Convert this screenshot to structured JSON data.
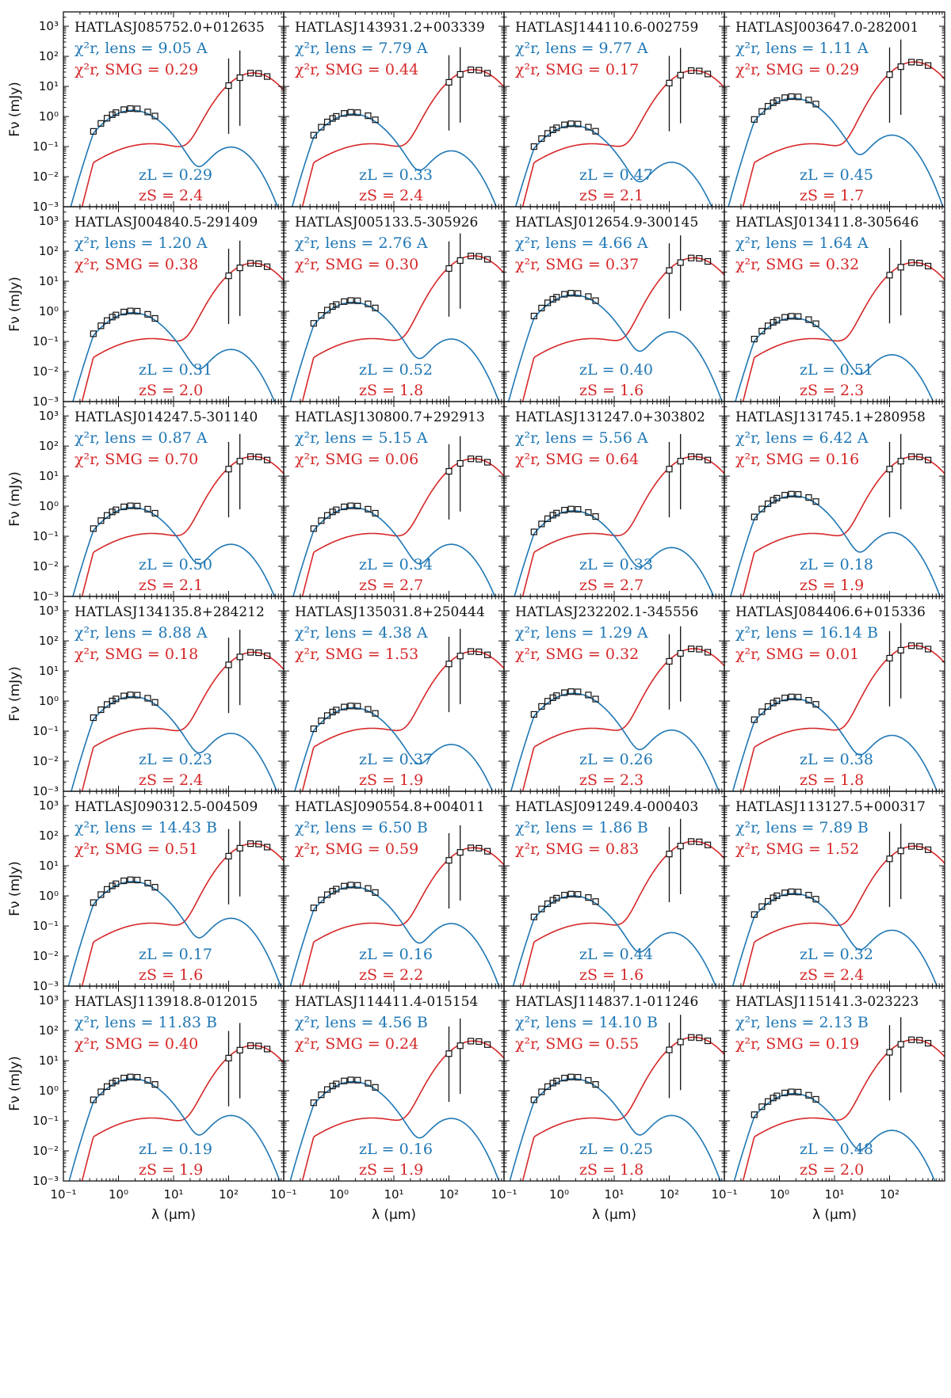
{
  "figure": {
    "xlabel": "λ (μm)",
    "ylabel": "Fν (mJy)",
    "colors": {
      "lens": "#1f77b4",
      "smg": "#d62728",
      "data": "#111111"
    }
  },
  "chart_data": {
    "type": "line",
    "x_scale": "log",
    "y_scale": "log",
    "xlim": [
      0.1,
      1000
    ],
    "ylim": [
      0.001,
      3000
    ],
    "x_ticks": [
      "10⁻¹",
      "10⁰",
      "10¹",
      "10²"
    ],
    "y_ticks": [
      "10⁻³",
      "10⁻²",
      "10⁻¹",
      "10⁰",
      "10¹",
      "10²",
      "10³"
    ],
    "lens_label": "χ²r, lens = ",
    "smg_label": "χ²r, SMG = ",
    "zl_label": "zL = ",
    "zs_label": "zS = ",
    "panels": [
      {
        "name": "HATLASJ085752.0+012635",
        "chi_lens": "9.05",
        "grade": "A",
        "chi_smg": "0.29",
        "zl": "0.29",
        "zs": "2.4",
        "lens_peak": 1.6,
        "fir_peak": 28
      },
      {
        "name": "HATLASJ143931.2+003339",
        "chi_lens": "7.79",
        "grade": "A",
        "chi_smg": "0.44",
        "zl": "0.33",
        "zs": "2.4",
        "lens_peak": 1.2,
        "fir_peak": 36
      },
      {
        "name": "HATLASJ144110.6-002759",
        "chi_lens": "9.77",
        "grade": "A",
        "chi_smg": "0.17",
        "zl": "0.47",
        "zs": "2.1",
        "lens_peak": 0.5,
        "fir_peak": 34
      },
      {
        "name": "HATLASJ003647.0-282001",
        "chi_lens": "1.11",
        "grade": "A",
        "chi_smg": "0.29",
        "zl": "0.45",
        "zs": "1.7",
        "lens_peak": 4.0,
        "fir_peak": 65
      },
      {
        "name": "HATLASJ004840.5-291409",
        "chi_lens": "1.20",
        "grade": "A",
        "chi_smg": "0.38",
        "zl": "0.31",
        "zs": "2.0",
        "lens_peak": 0.9,
        "fir_peak": 40
      },
      {
        "name": "HATLASJ005133.5-305926",
        "chi_lens": "2.76",
        "grade": "A",
        "chi_smg": "0.30",
        "zl": "0.52",
        "zs": "1.8",
        "lens_peak": 2.0,
        "fir_peak": 70
      },
      {
        "name": "HATLASJ012654.9-300145",
        "chi_lens": "4.66",
        "grade": "A",
        "chi_smg": "0.37",
        "zl": "0.40",
        "zs": "1.6",
        "lens_peak": 3.5,
        "fir_peak": 60
      },
      {
        "name": "HATLASJ013411.8-305646",
        "chi_lens": "1.64",
        "grade": "A",
        "chi_smg": "0.32",
        "zl": "0.51",
        "zs": "2.3",
        "lens_peak": 0.6,
        "fir_peak": 42
      },
      {
        "name": "HATLASJ014247.5-301140",
        "chi_lens": "0.87",
        "grade": "A",
        "chi_smg": "0.70",
        "zl": "0.50",
        "zs": "2.1",
        "lens_peak": 0.9,
        "fir_peak": 45
      },
      {
        "name": "HATLASJ130800.7+292913",
        "chi_lens": "5.15",
        "grade": "A",
        "chi_smg": "0.06",
        "zl": "0.34",
        "zs": "2.7",
        "lens_peak": 0.9,
        "fir_peak": 38
      },
      {
        "name": "HATLASJ131247.0+303802",
        "chi_lens": "5.56",
        "grade": "A",
        "chi_smg": "0.64",
        "zl": "0.33",
        "zs": "2.7",
        "lens_peak": 0.7,
        "fir_peak": 45
      },
      {
        "name": "HATLASJ131745.1+280958",
        "chi_lens": "6.42",
        "grade": "A",
        "chi_smg": "0.16",
        "zl": "0.18",
        "zs": "1.9",
        "lens_peak": 2.2,
        "fir_peak": 45
      },
      {
        "name": "HATLASJ134135.8+284212",
        "chi_lens": "8.88",
        "grade": "A",
        "chi_smg": "0.18",
        "zl": "0.23",
        "zs": "2.4",
        "lens_peak": 1.4,
        "fir_peak": 42
      },
      {
        "name": "HATLASJ135031.8+250444",
        "chi_lens": "4.38",
        "grade": "A",
        "chi_smg": "1.53",
        "zl": "0.37",
        "zs": "1.9",
        "lens_peak": 0.6,
        "fir_peak": 45
      },
      {
        "name": "HATLASJ232202.1-345556",
        "chi_lens": "1.29",
        "grade": "A",
        "chi_smg": "0.32",
        "zl": "0.26",
        "zs": "2.3",
        "lens_peak": 1.8,
        "fir_peak": 55
      },
      {
        "name": "HATLASJ084406.6+015336",
        "chi_lens": "16.14",
        "grade": "B",
        "chi_smg": "0.01",
        "zl": "0.38",
        "zs": "1.8",
        "lens_peak": 1.2,
        "fir_peak": 70
      },
      {
        "name": "HATLASJ090312.5-004509",
        "chi_lens": "14.43",
        "grade": "B",
        "chi_smg": "0.51",
        "zl": "0.17",
        "zs": "1.6",
        "lens_peak": 3.0,
        "fir_peak": 55
      },
      {
        "name": "HATLASJ090554.8+004011",
        "chi_lens": "6.50",
        "grade": "B",
        "chi_smg": "0.59",
        "zl": "0.16",
        "zs": "2.2",
        "lens_peak": 2.0,
        "fir_peak": 40
      },
      {
        "name": "HATLASJ091249.4-000403",
        "chi_lens": "1.86",
        "grade": "B",
        "chi_smg": "0.83",
        "zl": "0.44",
        "zs": "1.6",
        "lens_peak": 1.0,
        "fir_peak": 65
      },
      {
        "name": "HATLASJ113127.5+000317",
        "chi_lens": "7.89",
        "grade": "B",
        "chi_smg": "1.52",
        "zl": "0.32",
        "zs": "2.4",
        "lens_peak": 1.2,
        "fir_peak": 45
      },
      {
        "name": "HATLASJ113918.8-012015",
        "chi_lens": "11.83",
        "grade": "B",
        "chi_smg": "0.40",
        "zl": "0.19",
        "zs": "1.9",
        "lens_peak": 2.5,
        "fir_peak": 32
      },
      {
        "name": "HATLASJ114411.4-015154",
        "chi_lens": "4.56",
        "grade": "B",
        "chi_smg": "0.24",
        "zl": "0.16",
        "zs": "1.9",
        "lens_peak": 2.0,
        "fir_peak": 45
      },
      {
        "name": "HATLASJ114837.1-011246",
        "chi_lens": "14.10",
        "grade": "B",
        "chi_smg": "0.55",
        "zl": "0.25",
        "zs": "1.8",
        "lens_peak": 2.5,
        "fir_peak": 60
      },
      {
        "name": "HATLASJ115141.3-023223",
        "chi_lens": "2.13",
        "grade": "B",
        "chi_smg": "0.19",
        "zl": "0.48",
        "zs": "2.0",
        "lens_peak": 0.8,
        "fir_peak": 50
      }
    ]
  }
}
